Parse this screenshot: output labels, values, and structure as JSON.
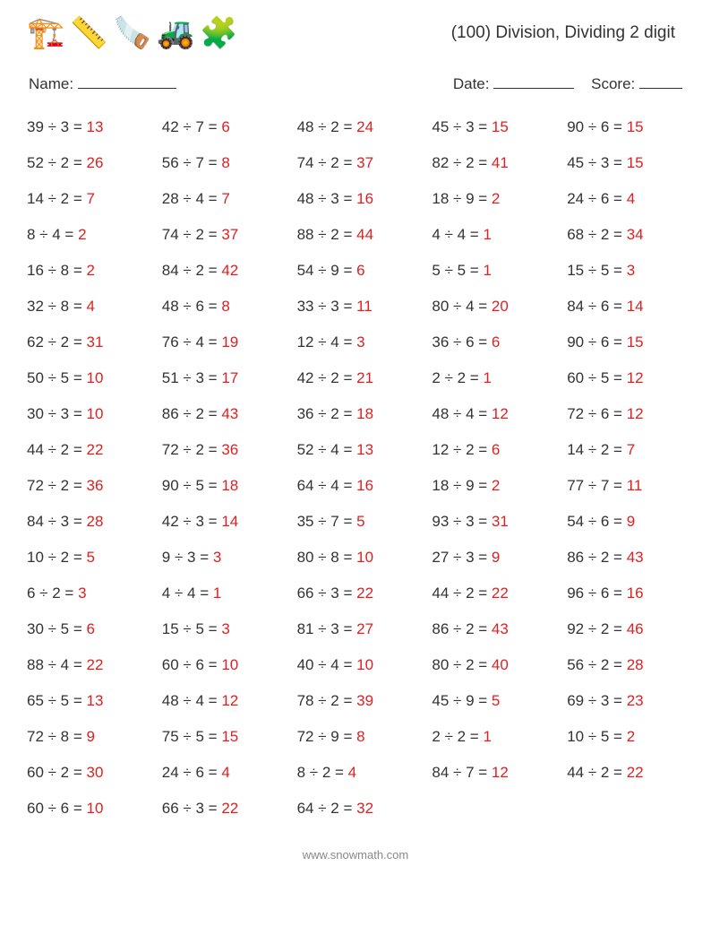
{
  "header": {
    "icons": [
      "🏗️",
      "📏",
      "🪚",
      "🚜",
      "🧩"
    ],
    "title": "(100) Division, Dividing 2 digit"
  },
  "info": {
    "name_label": "Name:",
    "name_blank_width": 110,
    "date_label": "Date:",
    "date_blank_width": 90,
    "score_label": "Score:",
    "score_blank_width": 48
  },
  "style": {
    "text_color": "#333333",
    "answer_color": "#e02020",
    "background": "#ffffff",
    "font_size_problem": 17,
    "font_size_title": 19,
    "columns": 5
  },
  "problems": [
    {
      "a": 39,
      "b": 3,
      "ans": 13
    },
    {
      "a": 42,
      "b": 7,
      "ans": 6
    },
    {
      "a": 48,
      "b": 2,
      "ans": 24
    },
    {
      "a": 45,
      "b": 3,
      "ans": 15
    },
    {
      "a": 90,
      "b": 6,
      "ans": 15
    },
    {
      "a": 52,
      "b": 2,
      "ans": 26
    },
    {
      "a": 56,
      "b": 7,
      "ans": 8
    },
    {
      "a": 74,
      "b": 2,
      "ans": 37
    },
    {
      "a": 82,
      "b": 2,
      "ans": 41
    },
    {
      "a": 45,
      "b": 3,
      "ans": 15
    },
    {
      "a": 14,
      "b": 2,
      "ans": 7
    },
    {
      "a": 28,
      "b": 4,
      "ans": 7
    },
    {
      "a": 48,
      "b": 3,
      "ans": 16
    },
    {
      "a": 18,
      "b": 9,
      "ans": 2
    },
    {
      "a": 24,
      "b": 6,
      "ans": 4
    },
    {
      "a": 8,
      "b": 4,
      "ans": 2
    },
    {
      "a": 74,
      "b": 2,
      "ans": 37
    },
    {
      "a": 88,
      "b": 2,
      "ans": 44
    },
    {
      "a": 4,
      "b": 4,
      "ans": 1
    },
    {
      "a": 68,
      "b": 2,
      "ans": 34
    },
    {
      "a": 16,
      "b": 8,
      "ans": 2
    },
    {
      "a": 84,
      "b": 2,
      "ans": 42
    },
    {
      "a": 54,
      "b": 9,
      "ans": 6
    },
    {
      "a": 5,
      "b": 5,
      "ans": 1
    },
    {
      "a": 15,
      "b": 5,
      "ans": 3
    },
    {
      "a": 32,
      "b": 8,
      "ans": 4
    },
    {
      "a": 48,
      "b": 6,
      "ans": 8
    },
    {
      "a": 33,
      "b": 3,
      "ans": 11
    },
    {
      "a": 80,
      "b": 4,
      "ans": 20
    },
    {
      "a": 84,
      "b": 6,
      "ans": 14
    },
    {
      "a": 62,
      "b": 2,
      "ans": 31
    },
    {
      "a": 76,
      "b": 4,
      "ans": 19
    },
    {
      "a": 12,
      "b": 4,
      "ans": 3
    },
    {
      "a": 36,
      "b": 6,
      "ans": 6
    },
    {
      "a": 90,
      "b": 6,
      "ans": 15
    },
    {
      "a": 50,
      "b": 5,
      "ans": 10
    },
    {
      "a": 51,
      "b": 3,
      "ans": 17
    },
    {
      "a": 42,
      "b": 2,
      "ans": 21
    },
    {
      "a": 2,
      "b": 2,
      "ans": 1
    },
    {
      "a": 60,
      "b": 5,
      "ans": 12
    },
    {
      "a": 30,
      "b": 3,
      "ans": 10
    },
    {
      "a": 86,
      "b": 2,
      "ans": 43
    },
    {
      "a": 36,
      "b": 2,
      "ans": 18
    },
    {
      "a": 48,
      "b": 4,
      "ans": 12
    },
    {
      "a": 72,
      "b": 6,
      "ans": 12
    },
    {
      "a": 44,
      "b": 2,
      "ans": 22
    },
    {
      "a": 72,
      "b": 2,
      "ans": 36
    },
    {
      "a": 52,
      "b": 4,
      "ans": 13
    },
    {
      "a": 12,
      "b": 2,
      "ans": 6
    },
    {
      "a": 14,
      "b": 2,
      "ans": 7
    },
    {
      "a": 72,
      "b": 2,
      "ans": 36
    },
    {
      "a": 90,
      "b": 5,
      "ans": 18
    },
    {
      "a": 64,
      "b": 4,
      "ans": 16
    },
    {
      "a": 18,
      "b": 9,
      "ans": 2
    },
    {
      "a": 77,
      "b": 7,
      "ans": 11
    },
    {
      "a": 84,
      "b": 3,
      "ans": 28
    },
    {
      "a": 42,
      "b": 3,
      "ans": 14
    },
    {
      "a": 35,
      "b": 7,
      "ans": 5
    },
    {
      "a": 93,
      "b": 3,
      "ans": 31
    },
    {
      "a": 54,
      "b": 6,
      "ans": 9
    },
    {
      "a": 10,
      "b": 2,
      "ans": 5
    },
    {
      "a": 9,
      "b": 3,
      "ans": 3
    },
    {
      "a": 80,
      "b": 8,
      "ans": 10
    },
    {
      "a": 27,
      "b": 3,
      "ans": 9
    },
    {
      "a": 86,
      "b": 2,
      "ans": 43
    },
    {
      "a": 6,
      "b": 2,
      "ans": 3
    },
    {
      "a": 4,
      "b": 4,
      "ans": 1
    },
    {
      "a": 66,
      "b": 3,
      "ans": 22
    },
    {
      "a": 44,
      "b": 2,
      "ans": 22
    },
    {
      "a": 96,
      "b": 6,
      "ans": 16
    },
    {
      "a": 30,
      "b": 5,
      "ans": 6
    },
    {
      "a": 15,
      "b": 5,
      "ans": 3
    },
    {
      "a": 81,
      "b": 3,
      "ans": 27
    },
    {
      "a": 86,
      "b": 2,
      "ans": 43
    },
    {
      "a": 92,
      "b": 2,
      "ans": 46
    },
    {
      "a": 88,
      "b": 4,
      "ans": 22
    },
    {
      "a": 60,
      "b": 6,
      "ans": 10
    },
    {
      "a": 40,
      "b": 4,
      "ans": 10
    },
    {
      "a": 80,
      "b": 2,
      "ans": 40
    },
    {
      "a": 56,
      "b": 2,
      "ans": 28
    },
    {
      "a": 65,
      "b": 5,
      "ans": 13
    },
    {
      "a": 48,
      "b": 4,
      "ans": 12
    },
    {
      "a": 78,
      "b": 2,
      "ans": 39
    },
    {
      "a": 45,
      "b": 9,
      "ans": 5
    },
    {
      "a": 69,
      "b": 3,
      "ans": 23
    },
    {
      "a": 72,
      "b": 8,
      "ans": 9
    },
    {
      "a": 75,
      "b": 5,
      "ans": 15
    },
    {
      "a": 72,
      "b": 9,
      "ans": 8
    },
    {
      "a": 2,
      "b": 2,
      "ans": 1
    },
    {
      "a": 10,
      "b": 5,
      "ans": 2
    },
    {
      "a": 60,
      "b": 2,
      "ans": 30
    },
    {
      "a": 24,
      "b": 6,
      "ans": 4
    },
    {
      "a": 8,
      "b": 2,
      "ans": 4
    },
    {
      "a": 84,
      "b": 7,
      "ans": 12
    },
    {
      "a": 44,
      "b": 2,
      "ans": 22
    },
    {
      "a": 60,
      "b": 6,
      "ans": 10
    },
    {
      "a": 66,
      "b": 3,
      "ans": 22
    },
    {
      "a": 64,
      "b": 2,
      "ans": 32
    }
  ],
  "footer": {
    "text": "www.snowmath.com"
  }
}
